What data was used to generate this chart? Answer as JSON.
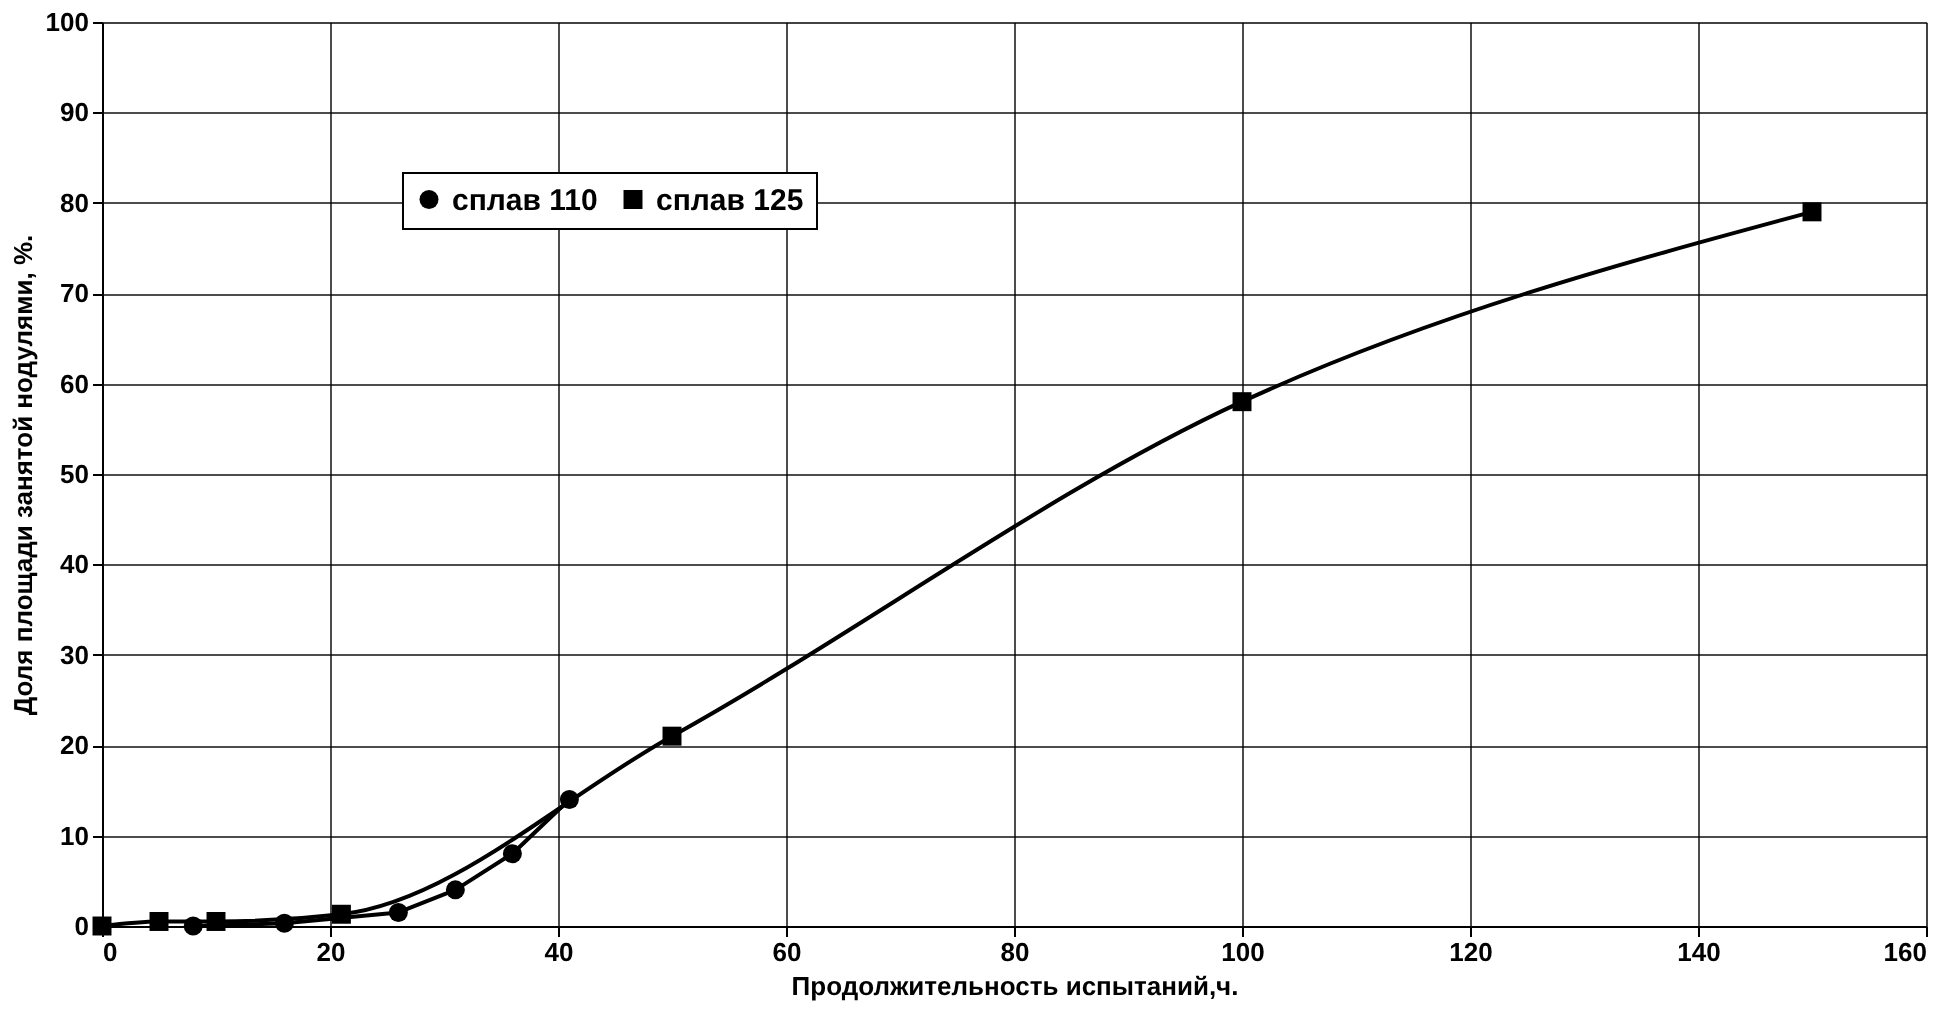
{
  "chart_data": {
    "type": "line",
    "xlabel": "Продолжительность испытаний,ч.",
    "ylabel": "Доля площади занятой нодулями, %.",
    "series": [
      {
        "name": "сплав 110",
        "color": "#000000",
        "marker": "circle",
        "x": [
          8,
          16,
          26,
          31,
          36,
          41
        ],
        "values": [
          0,
          0.3,
          1.5,
          4,
          8,
          14
        ]
      },
      {
        "name": "сплав 125",
        "color": "#000000",
        "marker": "square",
        "x": [
          0,
          5,
          10,
          21,
          50,
          100,
          150
        ],
        "values": [
          0,
          0.5,
          0.5,
          1.3,
          21,
          58,
          79
        ]
      }
    ],
    "xlim": [
      0,
      160
    ],
    "xticks": [
      0,
      20,
      40,
      60,
      80,
      100,
      120,
      140,
      160
    ],
    "ylim": [
      0,
      100
    ],
    "yticks": [
      0,
      10,
      20,
      30,
      40,
      50,
      60,
      70,
      80,
      90,
      100
    ],
    "grid": true,
    "legend": "top left",
    "line_style": "solid"
  }
}
